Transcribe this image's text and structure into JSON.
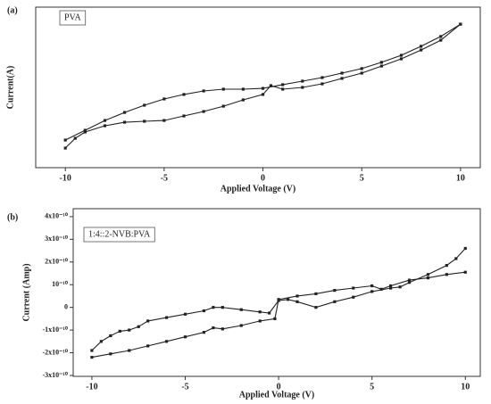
{
  "chart_data": [
    {
      "type": "line",
      "panel": "(a)",
      "annotation": "PVA",
      "xlabel": "Applied Voltage (V)",
      "ylabel": "Current(A)",
      "xlim": [
        -11.5,
        11
      ],
      "xticks": [
        -10,
        -5,
        0,
        5,
        10
      ],
      "ylim": [
        0,
        10
      ],
      "series": [
        {
          "color": "#222",
          "x": [
            -10,
            -9,
            -8,
            -7,
            -6,
            -5,
            -4,
            -3,
            -2,
            -1,
            0,
            1,
            2,
            3,
            4,
            5,
            6,
            7,
            8,
            9,
            10
          ],
          "values": [
            1.72,
            2.33,
            2.94,
            3.44,
            3.89,
            4.28,
            4.56,
            4.78,
            4.89,
            4.89,
            4.94,
            5.17,
            5.39,
            5.61,
            5.89,
            6.17,
            6.56,
            7.0,
            7.56,
            8.17,
            8.94
          ]
        },
        {
          "color": "#222",
          "x": [
            -10,
            -9.5,
            -9,
            -8,
            -7,
            -6,
            -5,
            -4,
            -3,
            -2,
            -1,
            0,
            0.4,
            1,
            2,
            3,
            4,
            5,
            6,
            7,
            8,
            9,
            10
          ],
          "values": [
            1.22,
            1.83,
            2.22,
            2.61,
            2.83,
            2.89,
            2.94,
            3.22,
            3.5,
            3.83,
            4.22,
            4.56,
            5.11,
            4.89,
            5.0,
            5.22,
            5.56,
            5.89,
            6.33,
            6.78,
            7.33,
            7.94,
            8.94
          ]
        }
      ]
    },
    {
      "type": "line",
      "panel": "(b)",
      "annotation": "1:4::2-NVB:PVA",
      "xlabel": "Applied Voltage (V)",
      "ylabel": "Current (Amp)",
      "xlim": [
        -11,
        10.8
      ],
      "xticks": [
        -10,
        -5,
        0,
        5,
        10
      ],
      "ylim": [
        -3.04e-10,
        4.35e-10
      ],
      "yticks": [
        {
          "value": 4e-10,
          "label": "4x10⁻¹⁰"
        },
        {
          "value": 3e-10,
          "label": "3x10⁻¹⁰"
        },
        {
          "value": 2e-10,
          "label": "2x10⁻¹⁰"
        },
        {
          "value": 1e-10,
          "label": "10⁻¹⁰"
        },
        0,
        {
          "value": -1e-10,
          "label": "-1x10⁻¹⁰"
        },
        {
          "value": -2e-10,
          "label": "-2x10⁻¹⁰"
        },
        {
          "value": -3e-10,
          "label": "-3x10⁻¹⁰"
        }
      ],
      "series": [
        {
          "color": "#222",
          "x": [
            -10,
            -9.5,
            -9,
            -8.5,
            -8,
            -7.5,
            -7,
            -6,
            -5,
            -4,
            -3.5,
            -3,
            -2,
            -1,
            -0.5,
            0,
            0.5,
            1,
            2,
            3,
            4,
            5,
            6,
            6.5,
            7,
            8,
            9,
            9.5,
            10
          ],
          "values": [
            -1.9e-10,
            -1.5e-10,
            -1.25e-10,
            -1.05e-10,
            -1e-10,
            -8.5e-11,
            -6e-11,
            -4.5e-11,
            -3e-11,
            -1.5e-11,
            0,
            0,
            -1e-11,
            -2e-11,
            -2.5e-11,
            3e-11,
            3.5e-11,
            2.5e-11,
            0,
            2.5e-11,
            4.5e-11,
            7e-11,
            8.5e-11,
            9e-11,
            1.1e-10,
            1.45e-10,
            1.85e-10,
            2.15e-10,
            2.6e-10
          ]
        },
        {
          "color": "#222",
          "x": [
            -10,
            -9,
            -8,
            -7,
            -6,
            -5,
            -4,
            -3.5,
            -3,
            -2,
            -1,
            -0.2,
            0,
            1,
            2,
            3,
            4,
            5,
            5.5,
            6,
            7,
            8,
            9,
            10
          ],
          "values": [
            -2.2e-10,
            -2.05e-10,
            -1.9e-10,
            -1.7e-10,
            -1.5e-10,
            -1.3e-10,
            -1.1e-10,
            -9e-11,
            -9.5e-11,
            -8e-11,
            -6e-11,
            -5e-11,
            3.5e-11,
            5e-11,
            6e-11,
            7.5e-11,
            8.5e-11,
            9.5e-11,
            8e-11,
            9.5e-11,
            1.2e-10,
            1.3e-10,
            1.45e-10,
            1.55e-10
          ]
        }
      ]
    }
  ]
}
